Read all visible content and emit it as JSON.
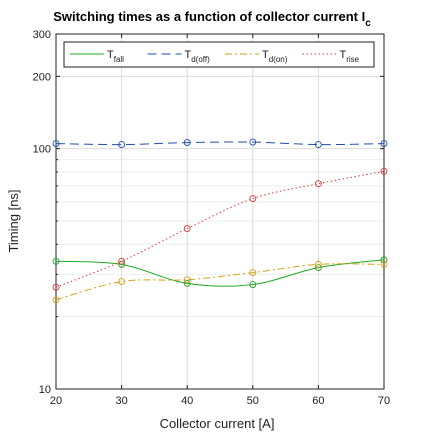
{
  "chart_data": {
    "type": "line",
    "title": "Switching times as a function of collector current I",
    "title_subscript": "c",
    "xlabel": "Collector current [A]",
    "ylabel": "Timing [ns]",
    "x": [
      20,
      30,
      40,
      50,
      60,
      70
    ],
    "xlim": [
      20,
      70
    ],
    "ylim": [
      10,
      300
    ],
    "yscale": "log",
    "xticks": [
      20,
      30,
      40,
      50,
      60,
      70
    ],
    "yticks": [
      10,
      100,
      200,
      300
    ],
    "grid": true,
    "legend_position": "top",
    "legend_columns": 4,
    "series": [
      {
        "name": "T",
        "sub": "fall",
        "color": "#1fa81f",
        "dash": "solid",
        "values": [
          34,
          33,
          27.5,
          27.2,
          32,
          34.5
        ]
      },
      {
        "name": "T",
        "sub": "d(off)",
        "color": "#1f4fa8",
        "dash": "dashed",
        "values": [
          105,
          104,
          106,
          106.5,
          104,
          105
        ]
      },
      {
        "name": "T",
        "sub": "d(on)",
        "color": "#d4a017",
        "dash": "dashdot",
        "values": [
          23.5,
          28,
          28.5,
          30.5,
          33,
          33
        ]
      },
      {
        "name": "T",
        "sub": "rise",
        "color": "#d43a3a",
        "dash": "dotted",
        "values": [
          26.5,
          34,
          46.5,
          62,
          71.5,
          80.5
        ]
      }
    ]
  }
}
